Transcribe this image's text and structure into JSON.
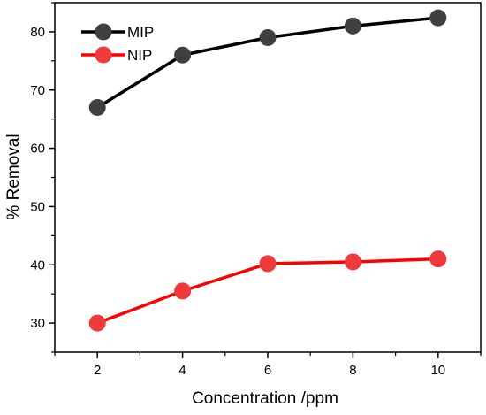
{
  "chart_data": {
    "type": "line",
    "title": "",
    "xlabel": "Concentration /ppm",
    "ylabel": "% Removal",
    "x": [
      2,
      4,
      6,
      8,
      10
    ],
    "xlim": [
      1,
      11
    ],
    "ylim": [
      25,
      85
    ],
    "xticks": [
      2,
      4,
      6,
      8,
      10
    ],
    "yticks": [
      30,
      40,
      50,
      60,
      70,
      80
    ],
    "grid": false,
    "legend_position": "top-left",
    "series": [
      {
        "name": "MIP",
        "values": [
          67,
          76,
          79,
          81,
          82.4
        ],
        "line_color": "#000000",
        "marker_color": "#404040"
      },
      {
        "name": "NIP",
        "values": [
          30,
          35.5,
          40.2,
          40.5,
          41
        ],
        "line_color": "#ff0000",
        "marker_color": "#ee3a3a"
      }
    ]
  }
}
